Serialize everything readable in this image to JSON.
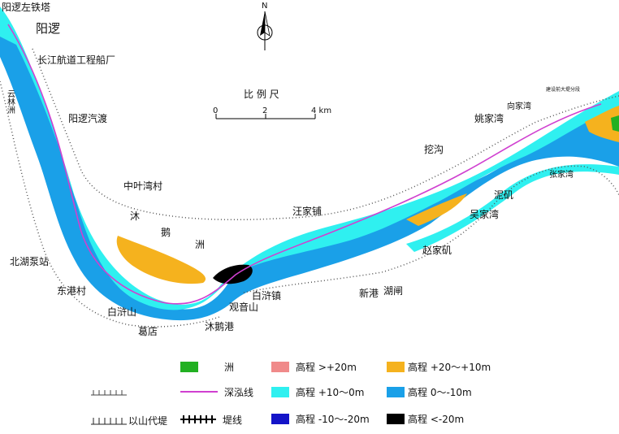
{
  "places": {
    "yangluo_tower": "阳逻左铁塔",
    "yangluo": "阳逻",
    "shipyard": "长江航道工程船厂",
    "yunlinzhou": "云林洲",
    "yangluo_ferry": "阳逻汽渡",
    "zhongyewan": "中叶湾村",
    "mu": "沐",
    "e": "鹅",
    "zhou": "洲",
    "beihu": "北湖泵站",
    "donggang": "东港村",
    "baixushan": "白浒山",
    "gedian": "葛店",
    "muegang": "沐鹅港",
    "guanyinshan": "观音山",
    "baixuzhen": "白浒镇",
    "xingang": "新港",
    "huzha": "湖闸",
    "zhaojiaji": "赵家矶",
    "wujiawan": "吴家湾",
    "niji": "泥矶",
    "wangjiapu": "汪家铺",
    "wagou": "挖沟",
    "yaojiawan": "姚家湾",
    "xiangjiawan": "向家湾",
    "zhangjiawan": "张家湾",
    "bridge_note": "建设前大堤分段"
  },
  "north": "N",
  "scale": {
    "title": "比 例 尺",
    "ticks": [
      "0",
      "2",
      "4 km"
    ]
  },
  "legend": {
    "zhou": "洲",
    "thalweg": "深泓线",
    "hill_levee": "以山代堤",
    "levee": "堤线",
    "e1": "高程 >+20m",
    "e2": "高程 +10～0m",
    "e3": "高程 -10～-20m",
    "e4": "高程 +20～+10m",
    "e5": "高程 0～-10m",
    "e6": "高程 <-20m"
  },
  "colors": {
    "zhou": "#22b022",
    "above20": "#f08a8a",
    "c20_10": "#f5b21e",
    "c10_0": "#2ff0f0",
    "c0_m10": "#1aa0e8",
    "cm10_m20": "#1414c8",
    "below_m20": "#000000",
    "thalweg": "#d040d0"
  }
}
